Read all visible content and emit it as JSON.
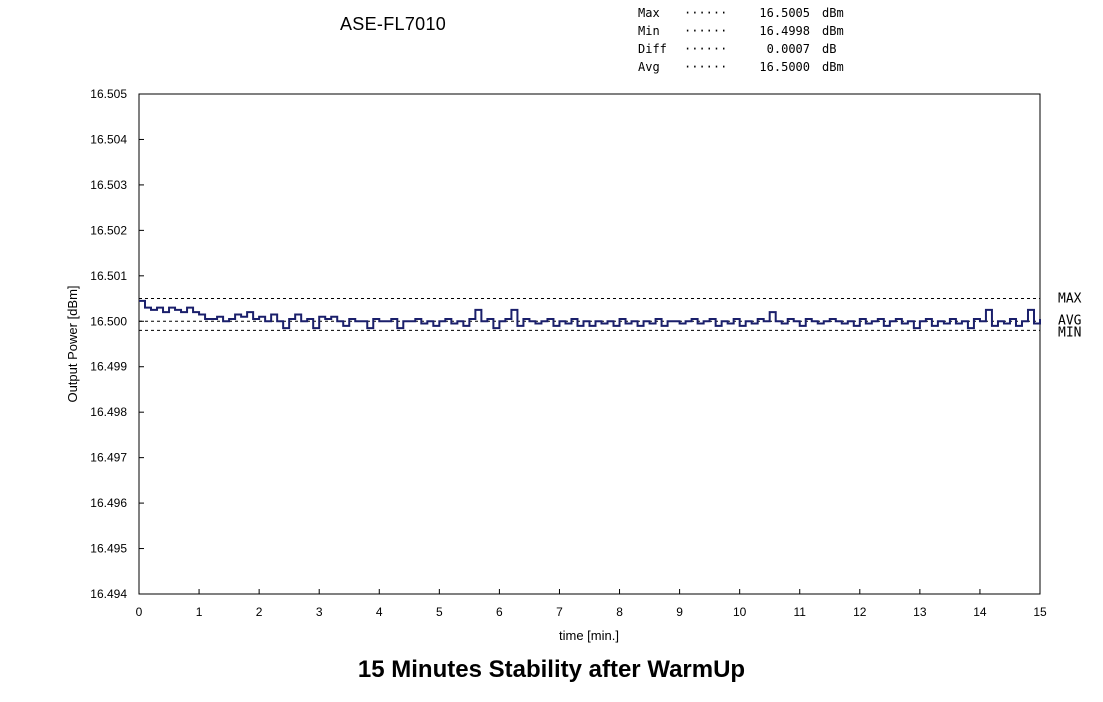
{
  "header": {
    "device": "ASE-FL7010",
    "stats": [
      {
        "name": "Max",
        "dots": "······",
        "value": "16.5005",
        "unit": "dBm"
      },
      {
        "name": "Min",
        "dots": "······",
        "value": "16.4998",
        "unit": "dBm"
      },
      {
        "name": "Diff",
        "dots": "······",
        "value": "0.0007",
        "unit": "dB"
      },
      {
        "name": "Avg",
        "dots": "······",
        "value": "16.5000",
        "unit": "dBm"
      }
    ]
  },
  "footer": {
    "title": "15 Minutes Stability after WarmUp"
  },
  "colors": {
    "trace": "#1a1f6b",
    "axis": "#000000",
    "reference": "#000000"
  },
  "chart_data": {
    "type": "line",
    "title": "15 Minutes Stability after WarmUp",
    "xlabel": "time [min.]",
    "ylabel": "Output Power [dBm]",
    "xlim": [
      0,
      15
    ],
    "ylim": [
      16.494,
      16.505
    ],
    "x_ticks": [
      0,
      1,
      2,
      3,
      4,
      5,
      6,
      7,
      8,
      9,
      10,
      11,
      12,
      13,
      14,
      15
    ],
    "y_ticks": [
      "16.505",
      "16.504",
      "16.503",
      "16.502",
      "16.501",
      "16.500",
      "16.499",
      "16.498",
      "16.497",
      "16.496",
      "16.495",
      "16.494"
    ],
    "grid": false,
    "reference_lines": [
      {
        "label": "MAX",
        "value": 16.5005
      },
      {
        "label": "AVG",
        "value": 16.5
      },
      {
        "label": "MIN",
        "value": 16.4998
      }
    ],
    "series": [
      {
        "x": [
          0.0,
          0.1,
          0.2,
          0.3,
          0.4,
          0.5,
          0.6,
          0.7,
          0.8,
          0.9,
          1.0,
          1.1,
          1.2,
          1.3,
          1.4,
          1.5,
          1.6,
          1.7,
          1.8,
          1.9,
          2.0,
          2.1,
          2.2,
          2.3,
          2.4,
          2.5,
          2.6,
          2.7,
          2.8,
          2.9,
          3.0,
          3.1,
          3.2,
          3.3,
          3.4,
          3.5,
          3.6,
          3.7,
          3.8,
          3.9,
          4.0,
          4.1,
          4.2,
          4.3,
          4.4,
          4.5,
          4.6,
          4.7,
          4.8,
          4.9,
          5.0,
          5.1,
          5.2,
          5.3,
          5.4,
          5.5,
          5.6,
          5.7,
          5.8,
          5.9,
          6.0,
          6.1,
          6.2,
          6.3,
          6.4,
          6.5,
          6.6,
          6.7,
          6.8,
          6.9,
          7.0,
          7.1,
          7.2,
          7.3,
          7.4,
          7.5,
          7.6,
          7.7,
          7.8,
          7.9,
          8.0,
          8.1,
          8.2,
          8.3,
          8.4,
          8.5,
          8.6,
          8.7,
          8.8,
          8.9,
          9.0,
          9.1,
          9.2,
          9.3,
          9.4,
          9.5,
          9.6,
          9.7,
          9.8,
          9.9,
          10.0,
          10.1,
          10.2,
          10.3,
          10.4,
          10.5,
          10.6,
          10.7,
          10.8,
          10.9,
          11.0,
          11.1,
          11.2,
          11.3,
          11.4,
          11.5,
          11.6,
          11.7,
          11.8,
          11.9,
          12.0,
          12.1,
          12.2,
          12.3,
          12.4,
          12.5,
          12.6,
          12.7,
          12.8,
          12.9,
          13.0,
          13.1,
          13.2,
          13.3,
          13.4,
          13.5,
          13.6,
          13.7,
          13.8,
          13.9,
          14.0,
          14.1,
          14.2,
          14.3,
          14.4,
          14.5,
          14.6,
          14.7,
          14.8,
          14.9,
          15.0
        ],
        "y": [
          16.50045,
          16.5003,
          16.50025,
          16.5003,
          16.5002,
          16.5003,
          16.50025,
          16.5002,
          16.5003,
          16.5002,
          16.50015,
          16.50005,
          16.50005,
          16.5001,
          16.5,
          16.50005,
          16.50015,
          16.5001,
          16.5002,
          16.50005,
          16.5001,
          16.5,
          16.50015,
          16.5,
          16.49985,
          16.50005,
          16.50015,
          16.5,
          16.50005,
          16.49985,
          16.5001,
          16.50005,
          16.5001,
          16.5,
          16.4999,
          16.50005,
          16.5,
          16.5,
          16.49985,
          16.50005,
          16.5,
          16.5,
          16.50005,
          16.49985,
          16.5,
          16.5,
          16.50005,
          16.49995,
          16.5,
          16.4999,
          16.5,
          16.50005,
          16.49995,
          16.5,
          16.4999,
          16.50005,
          16.50025,
          16.5,
          16.50005,
          16.49985,
          16.5,
          16.50005,
          16.50025,
          16.4999,
          16.50005,
          16.5,
          16.49995,
          16.5,
          16.50005,
          16.4999,
          16.5,
          16.49995,
          16.50005,
          16.4999,
          16.5,
          16.4999,
          16.5,
          16.49995,
          16.5,
          16.4999,
          16.50005,
          16.49995,
          16.5,
          16.4999,
          16.5,
          16.49995,
          16.50005,
          16.4999,
          16.5,
          16.5,
          16.49995,
          16.5,
          16.50005,
          16.49995,
          16.5,
          16.50005,
          16.4999,
          16.5,
          16.49995,
          16.50005,
          16.4999,
          16.5,
          16.49995,
          16.50005,
          16.5,
          16.5002,
          16.5,
          16.49995,
          16.50005,
          16.5,
          16.4999,
          16.50005,
          16.5,
          16.49995,
          16.5,
          16.50005,
          16.5,
          16.49995,
          16.5,
          16.4999,
          16.50005,
          16.49995,
          16.5,
          16.50005,
          16.4999,
          16.5,
          16.50005,
          16.49995,
          16.5,
          16.49985,
          16.5,
          16.50005,
          16.4999,
          16.5,
          16.49995,
          16.50005,
          16.49995,
          16.5,
          16.49985,
          16.50005,
          16.5,
          16.50025,
          16.4999,
          16.5,
          16.49995,
          16.50005,
          16.4999,
          16.5,
          16.50025,
          16.49995,
          16.50005
        ]
      }
    ]
  }
}
